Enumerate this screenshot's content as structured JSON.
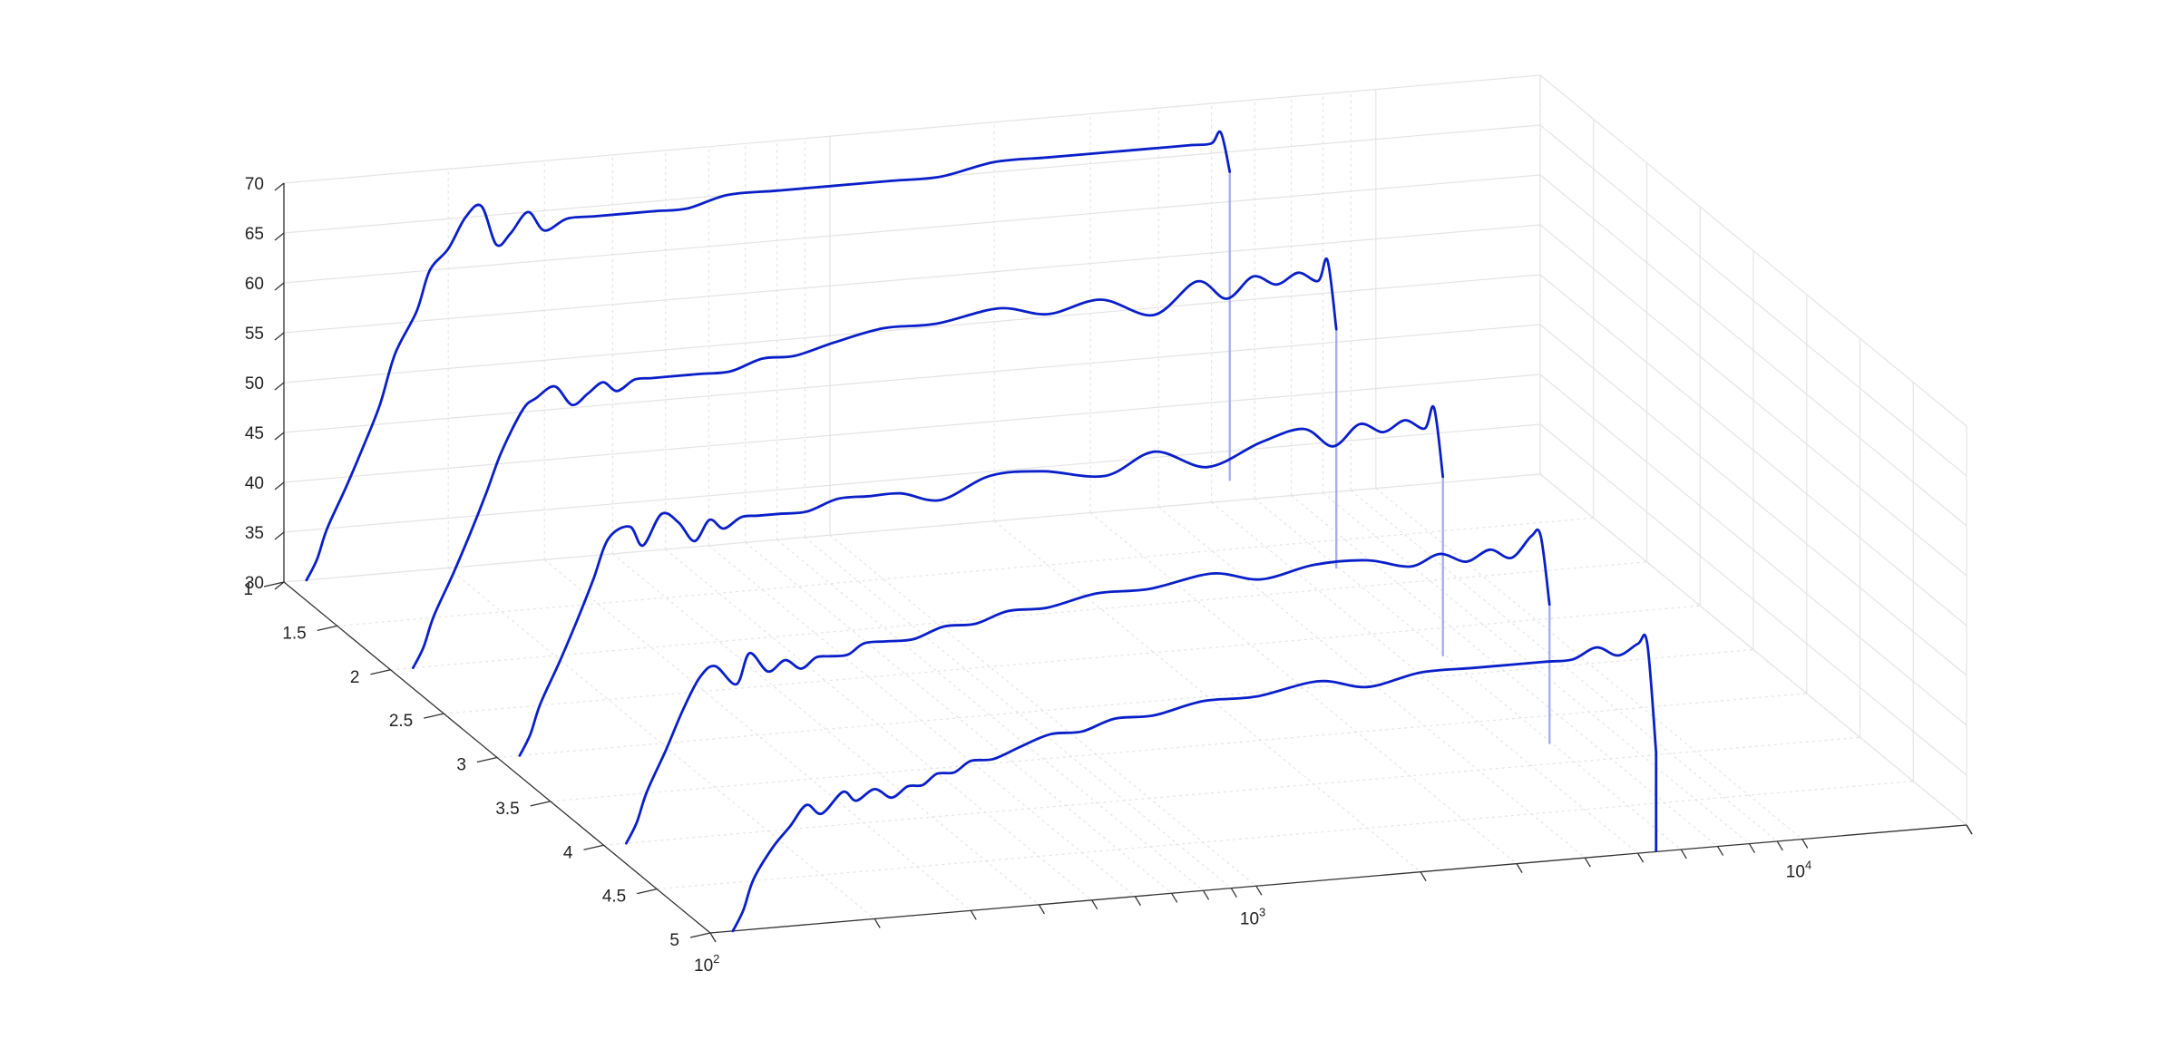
{
  "chart_data": {
    "type": "waterfall",
    "title": "",
    "xlabel": "",
    "ylabel": "",
    "zlabel": "",
    "x_scale": "log",
    "xlim": [
      100,
      20000
    ],
    "x_ticks": [
      {
        "value": 100,
        "base": "10",
        "exp": "2"
      },
      {
        "value": 1000,
        "base": "10",
        "exp": "3"
      },
      {
        "value": 10000,
        "base": "10",
        "exp": "4"
      }
    ],
    "ylim": [
      1,
      5
    ],
    "y_ticks": [
      "1",
      "1.5",
      "2",
      "2.5",
      "3",
      "3.5",
      "4",
      "4.5",
      "5"
    ],
    "zlim": [
      30,
      70
    ],
    "z_ticks": [
      "30",
      "35",
      "40",
      "45",
      "50",
      "55",
      "60",
      "65",
      "70"
    ],
    "grid": true,
    "line_color": "#0a1fc8",
    "tail_color": "#a8aef0",
    "series": [
      {
        "y": 1,
        "x": [
          110,
          115,
          120,
          130,
          140,
          150,
          160,
          175,
          185,
          200,
          215,
          230,
          245,
          260,
          280,
          300,
          330,
          370,
          420,
          480,
          550,
          650,
          800,
          1000,
          1300,
          1600,
          2000,
          2500,
          3000,
          3400,
          3800,
          4200,
          4600,
          5000,
          5200,
          5400
        ],
        "z": [
          30,
          32,
          35,
          39,
          43,
          47,
          52,
          56,
          60,
          62,
          65,
          66,
          62,
          63,
          65,
          63,
          64,
          64,
          64,
          64,
          64,
          65,
          65,
          65,
          65,
          65,
          66,
          66,
          66,
          66,
          66,
          66,
          66,
          66,
          67,
          63
        ]
      },
      {
        "y": 2,
        "x": [
          110,
          115,
          120,
          130,
          140,
          150,
          160,
          175,
          185,
          200,
          215,
          230,
          245,
          260,
          280,
          300,
          330,
          370,
          420,
          480,
          550,
          650,
          800,
          1000,
          1300,
          1600,
          2000,
          2500,
          3000,
          3400,
          3800,
          4200,
          4600,
          5000,
          5200,
          5400
        ],
        "z": [
          30,
          32,
          35,
          39,
          43,
          47,
          51,
          55,
          56,
          57,
          55,
          56,
          57,
          56,
          57,
          57,
          57,
          57,
          57,
          58,
          58,
          59,
          60,
          60,
          61,
          60,
          61,
          59,
          62,
          60,
          62,
          61,
          62,
          61,
          63,
          56
        ]
      },
      {
        "y": 3,
        "x": [
          110,
          115,
          120,
          130,
          140,
          150,
          160,
          175,
          185,
          200,
          215,
          230,
          245,
          260,
          280,
          300,
          330,
          370,
          420,
          480,
          550,
          650,
          800,
          1000,
          1300,
          1600,
          2000,
          2500,
          3000,
          3400,
          3800,
          4200,
          4600,
          5000,
          5200,
          5400
        ],
        "z": [
          30,
          32,
          35,
          39,
          43,
          47,
          51,
          52,
          50,
          53,
          52,
          50,
          52,
          51,
          52,
          52,
          52,
          52,
          53,
          53,
          53,
          52,
          54,
          54,
          53,
          55,
          53,
          55,
          56,
          54,
          56,
          55,
          56,
          55,
          57,
          50
        ]
      },
      {
        "y": 4,
        "x": [
          110,
          115,
          120,
          130,
          140,
          150,
          160,
          175,
          185,
          200,
          215,
          230,
          245,
          260,
          280,
          300,
          330,
          370,
          420,
          480,
          550,
          650,
          800,
          1000,
          1300,
          1600,
          2000,
          2500,
          3000,
          3400,
          3800,
          4200,
          4600,
          5000,
          5200,
          5400
        ],
        "z": [
          30,
          32,
          35,
          39,
          43,
          46,
          47,
          45,
          48,
          46,
          47,
          46,
          47,
          47,
          47,
          48,
          48,
          48,
          49,
          49,
          50,
          50,
          51,
          51,
          52,
          51,
          52,
          52,
          51,
          52,
          51,
          52,
          51,
          53,
          53,
          46
        ]
      },
      {
        "y": 5,
        "x": [
          110,
          115,
          120,
          130,
          140,
          150,
          160,
          175,
          185,
          200,
          215,
          230,
          245,
          260,
          280,
          300,
          330,
          370,
          420,
          480,
          550,
          650,
          800,
          1000,
          1300,
          1600,
          2000,
          2500,
          3000,
          3400,
          3800,
          4200,
          4600,
          5000,
          5200,
          5400
        ],
        "z": [
          30,
          32,
          35,
          38,
          40,
          42,
          41,
          43,
          42,
          43,
          42,
          43,
          43,
          44,
          44,
          45,
          45,
          46,
          47,
          47,
          48,
          48,
          49,
          49,
          50,
          49,
          50,
          50,
          50,
          50,
          50,
          51,
          50,
          51,
          51,
          40
        ]
      }
    ]
  }
}
